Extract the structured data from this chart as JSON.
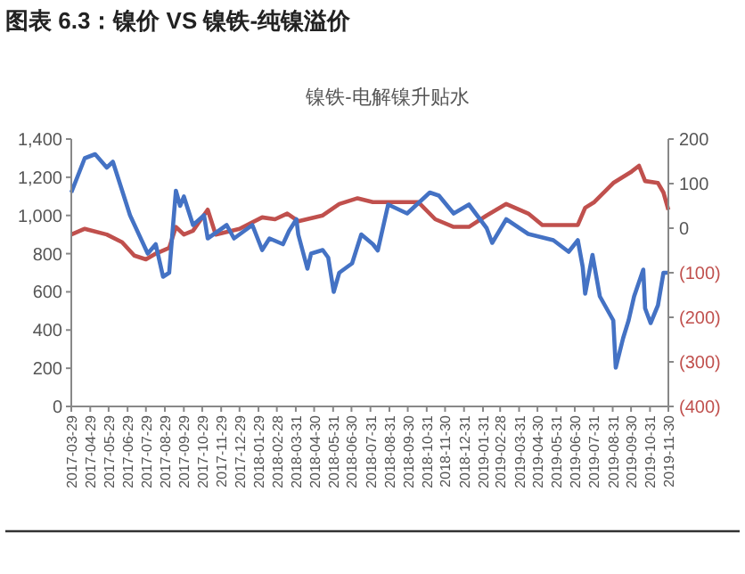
{
  "chart_data": {
    "type": "line",
    "title": "图表 6.3：镍价 VS 镍铁-纯镍溢价",
    "subtitle": "镍铁-电解镍升贴水",
    "series": [
      {
        "color": "#c0504d",
        "x": [
          "2017-03-29",
          "2017-04-20",
          "2017-05-26",
          "2017-06-20",
          "2017-07-10",
          "2017-07-29",
          "2017-08-14",
          "2017-09-05",
          "2017-09-16",
          "2017-09-29",
          "2017-10-14",
          "2017-11-07",
          "2017-11-20",
          "2017-12-29",
          "2018-02-04",
          "2018-02-25",
          "2018-03-17",
          "2018-04-04",
          "2018-05-14",
          "2018-06-10",
          "2018-07-10",
          "2018-08-04",
          "2018-08-29",
          "2018-10-17",
          "2018-11-14",
          "2018-12-14",
          "2019-01-08",
          "2019-02-06",
          "2019-03-10",
          "2019-04-15",
          "2019-05-08",
          "2019-06-05",
          "2019-07-05",
          "2019-07-17",
          "2019-08-01",
          "2019-09-01",
          "2019-10-01",
          "2019-10-13",
          "2019-10-23",
          "2019-11-13",
          "2019-11-22",
          "2019-11-30"
        ],
        "values": [
          900,
          930,
          900,
          860,
          790,
          770,
          800,
          830,
          940,
          900,
          920,
          1030,
          900,
          930,
          990,
          980,
          1010,
          970,
          1000,
          1060,
          1090,
          1070,
          1070,
          1070,
          980,
          940,
          940,
          1000,
          1060,
          1010,
          950,
          950,
          950,
          1040,
          1070,
          1170,
          1230,
          1260,
          1180,
          1170,
          1120,
          1030
        ]
      },
      {
        "color": "#4472c4",
        "axis": "y2",
        "x": [
          "2017-03-29",
          "2017-04-20",
          "2017-05-07",
          "2017-05-26",
          "2017-06-05",
          "2017-07-03",
          "2017-08-01",
          "2017-08-14",
          "2017-08-26",
          "2017-09-05",
          "2017-09-16",
          "2017-09-23",
          "2017-09-29",
          "2017-10-14",
          "2017-11-01",
          "2017-11-07",
          "2017-12-08",
          "2017-12-20",
          "2018-01-19",
          "2018-02-04",
          "2018-02-16",
          "2018-03-10",
          "2018-03-20",
          "2018-04-01",
          "2018-04-04",
          "2018-04-19",
          "2018-04-25",
          "2018-05-14",
          "2018-05-23",
          "2018-06-01",
          "2018-06-10",
          "2018-07-01",
          "2018-07-16",
          "2018-08-04",
          "2018-08-12",
          "2018-08-29",
          "2018-09-29",
          "2018-11-05",
          "2018-11-20",
          "2018-12-14",
          "2019-01-08",
          "2019-02-06",
          "2019-02-15",
          "2019-03-10",
          "2019-04-15",
          "2019-05-26",
          "2019-06-20",
          "2019-07-05",
          "2019-07-13",
          "2019-07-17",
          "2019-07-29",
          "2019-08-10",
          "2019-09-01",
          "2019-09-05",
          "2019-09-17",
          "2019-09-26",
          "2019-10-05",
          "2019-10-20",
          "2019-10-23",
          "2019-11-01",
          "2019-11-13",
          "2019-11-22",
          "2019-11-30"
        ],
        "values": [
          80,
          157,
          166,
          136,
          149,
          29,
          -57,
          -36,
          -109,
          -100,
          84,
          50,
          71,
          7,
          29,
          -23,
          7,
          -23,
          7,
          -49,
          -23,
          -36,
          -6,
          20,
          -14,
          -91,
          -57,
          -49,
          -66,
          -143,
          -100,
          -79,
          -14,
          -36,
          -50,
          53,
          33,
          80,
          73,
          33,
          53,
          0,
          -33,
          20,
          -13,
          -27,
          -53,
          -27,
          -87,
          -147,
          -60,
          -153,
          -207,
          -313,
          -247,
          -207,
          -153,
          -93,
          -180,
          -213,
          -173,
          -100,
          -100
        ]
      }
    ],
    "xlim": [
      "2017-03-29",
      "2019-11-30"
    ],
    "xticks": [
      "2017-03-29",
      "2017-04-29",
      "2017-05-29",
      "2017-06-29",
      "2017-07-29",
      "2017-08-29",
      "2017-09-29",
      "2017-10-29",
      "2017-11-29",
      "2017-12-29",
      "2018-01-29",
      "2018-02-28",
      "2018-03-31",
      "2018-04-30",
      "2018-05-31",
      "2018-06-30",
      "2018-07-31",
      "2018-08-31",
      "2018-09-30",
      "2018-10-31",
      "2018-11-30",
      "2018-12-31",
      "2019-01-31",
      "2019-02-28",
      "2019-03-31",
      "2019-04-30",
      "2019-05-31",
      "2019-06-30",
      "2019-07-31",
      "2019-08-31",
      "2019-09-30",
      "2019-10-31",
      "2019-11-30"
    ],
    "ylim": [
      0,
      1400
    ],
    "yticks": [
      {
        "value": 0,
        "label": "0"
      },
      {
        "value": 200,
        "label": "200"
      },
      {
        "value": 400,
        "label": "400"
      },
      {
        "value": 600,
        "label": "600"
      },
      {
        "value": 800,
        "label": "800"
      },
      {
        "value": 1000,
        "label": "1,000"
      },
      {
        "value": 1200,
        "label": "1,200"
      },
      {
        "value": 1400,
        "label": "1,400"
      }
    ],
    "y2lim": [
      -400,
      200
    ],
    "y2ticks": [
      {
        "value": -400,
        "label": "(400)"
      },
      {
        "value": -300,
        "label": "(300)"
      },
      {
        "value": -200,
        "label": "(200)"
      },
      {
        "value": -100,
        "label": "(100)"
      },
      0,
      100,
      200
    ],
    "grid": false,
    "marker": "none",
    "line_style": "solid"
  }
}
